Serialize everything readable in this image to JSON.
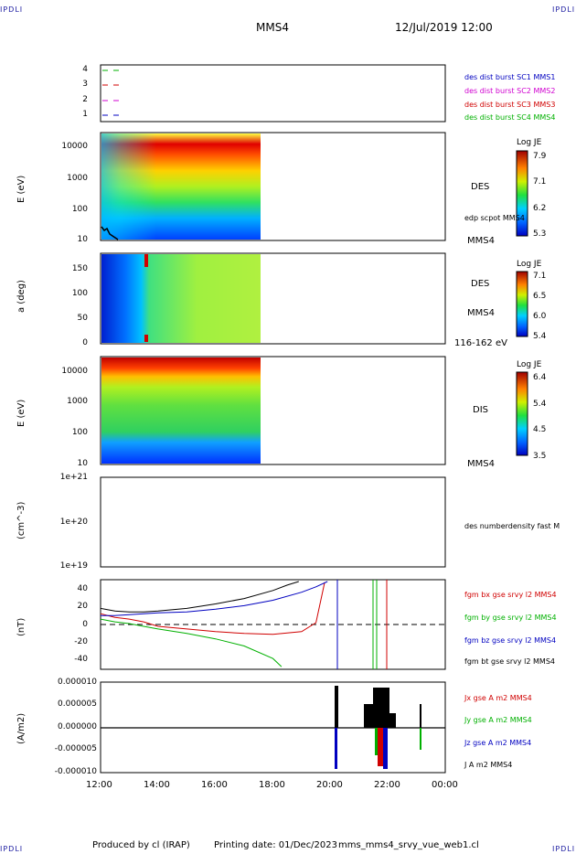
{
  "corners": {
    "tl": "IPDLI",
    "tr": "IPDLI",
    "bl": "IPDLI",
    "br": "IPDLI"
  },
  "header": {
    "title": "MMS4",
    "datetime": "12/Jul/2019 12:00"
  },
  "footer": {
    "produced": "Produced by cl (IRAP)",
    "printing": "Printing date: 01/Dec/2023",
    "file": "mms_mms4_srvy_vue_web1.cl"
  },
  "colors": {
    "mms1": "#0000c0",
    "mms2": "#d000d0",
    "mms3": "#d00000",
    "mms4": "#00b000",
    "black": "#000000"
  },
  "chart_data": [
    {
      "type": "line",
      "name": "spacecraft-availability",
      "yticks": [
        "4",
        "3",
        "2",
        "1"
      ],
      "legend": [
        "des dist burst SC1 MMS1",
        "des dist burst SC2 MMS2",
        "des dist burst SC3 MMS3",
        "des dist burst SC4 MMS4"
      ]
    },
    {
      "type": "heatmap",
      "name": "des-energy",
      "ylabel": "E (eV)",
      "yticks": [
        "10000",
        "1000",
        "100",
        "10"
      ],
      "ylim": [
        10,
        30000
      ],
      "yscale": "log",
      "label": "DES",
      "sublabel": "MMS4",
      "overlay": "edp scpot MMS4",
      "colorbar": {
        "title": "Log JE",
        "ticks": [
          "7.9",
          "7.1",
          "6.2",
          "5.3"
        ]
      }
    },
    {
      "type": "heatmap",
      "name": "des-pitch-angle",
      "ylabel": "a (deg)",
      "yticks": [
        "150",
        "100",
        "50",
        "0"
      ],
      "ylim": [
        0,
        180
      ],
      "label": "DES",
      "sublabel": "MMS4",
      "range": "116-162 eV",
      "colorbar": {
        "title": "Log JE",
        "ticks": [
          "7.1",
          "6.5",
          "6.0",
          "5.4"
        ]
      }
    },
    {
      "type": "heatmap",
      "name": "dis-energy",
      "ylabel": "E (eV)",
      "yticks": [
        "10000",
        "1000",
        "100",
        "10"
      ],
      "ylim": [
        10,
        30000
      ],
      "yscale": "log",
      "label": "DIS",
      "sublabel": "MMS4",
      "colorbar": {
        "title": "Log JE",
        "ticks": [
          "6.4",
          "5.4",
          "4.5",
          "3.5"
        ]
      }
    },
    {
      "type": "line",
      "name": "density",
      "ylabel": "(cm^-3)",
      "yticks": [
        "1e+21",
        "1e+20",
        "1e+19"
      ],
      "ylim": [
        1e+19,
        1e+21
      ],
      "yscale": "log",
      "legend": [
        "des numberdensity fast M"
      ]
    },
    {
      "type": "line",
      "name": "magnetic-field",
      "ylabel": "(nT)",
      "yticks": [
        "40",
        "20",
        "0",
        "-20",
        "-40"
      ],
      "ylim": [
        -50,
        50
      ],
      "series": [
        {
          "name": "fgm bx gse srvy l2 MMS4",
          "color": "#d00000",
          "x": [
            12.0,
            12.5,
            13.0,
            13.5,
            14.0,
            15.0,
            16.0,
            17.0,
            18.0,
            19.0,
            19.5,
            19.8
          ],
          "y": [
            12,
            8,
            6,
            3,
            -2,
            -5,
            -8,
            -10,
            -11,
            -8,
            2,
            47
          ]
        },
        {
          "name": "fgm by gse srvy l2 MMS4",
          "color": "#00b000",
          "x": [
            12.0,
            12.5,
            13.0,
            13.5,
            14.0,
            15.0,
            16.0,
            17.0,
            18.0,
            18.3
          ],
          "y": [
            6,
            3,
            1,
            -2,
            -5,
            -10,
            -16,
            -24,
            -38,
            -47
          ]
        },
        {
          "name": "fgm bz gse srvy l2 MMS4",
          "color": "#0000c0",
          "x": [
            12.0,
            12.5,
            13.0,
            13.5,
            14.0,
            15.0,
            16.0,
            17.0,
            18.0,
            19.0,
            19.5,
            19.9
          ],
          "y": [
            10,
            10,
            11,
            12,
            13,
            14,
            17,
            21,
            27,
            36,
            42,
            48
          ]
        },
        {
          "name": "fgm bt gse srvy l2 MMS4",
          "color": "#000000",
          "x": [
            12.0,
            12.5,
            13.0,
            13.5,
            14.0,
            15.0,
            16.0,
            17.0,
            18.0,
            18.5,
            18.9
          ],
          "y": [
            18,
            15,
            14,
            14,
            15,
            18,
            23,
            29,
            38,
            44,
            48
          ]
        }
      ]
    },
    {
      "type": "line",
      "name": "current-density",
      "ylabel": "(A/m2)",
      "yticks": [
        "0.000010",
        "0.000005",
        "0.000000",
        "-0.000005",
        "-0.000010"
      ],
      "ylim": [
        -1e-05,
        1e-05
      ],
      "xticks": [
        "12:00",
        "14:00",
        "16:00",
        "18:00",
        "20:00",
        "22:00",
        "00:00"
      ],
      "legend": [
        "Jx gse A m2 MMS4",
        "Jy gse A m2 MMS4",
        "Jz gse A m2 MMS4",
        "J A m2 MMS4"
      ]
    }
  ]
}
